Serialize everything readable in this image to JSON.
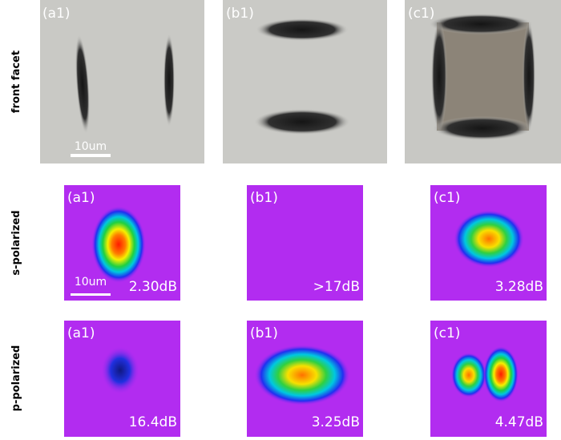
{
  "row_labels": [
    "front facet",
    "s-polarized",
    "p-polarized"
  ],
  "rows": [
    {
      "panels": [
        {
          "label": "(a1)",
          "scale_bar": "10um"
        },
        {
          "label": "(b1)"
        },
        {
          "label": "(c1)"
        }
      ]
    },
    {
      "panels": [
        {
          "label": "(a1)",
          "loss": "2.30dB",
          "scale_bar": "10um"
        },
        {
          "label": "(b1)",
          "loss": ">17dB"
        },
        {
          "label": "(c1)",
          "loss": "3.28dB"
        }
      ]
    },
    {
      "panels": [
        {
          "label": "(a1)",
          "loss": "16.4dB"
        },
        {
          "label": "(b1)",
          "loss": "3.25dB"
        },
        {
          "label": "(c1)",
          "loss": "4.47dB"
        }
      ]
    }
  ]
}
